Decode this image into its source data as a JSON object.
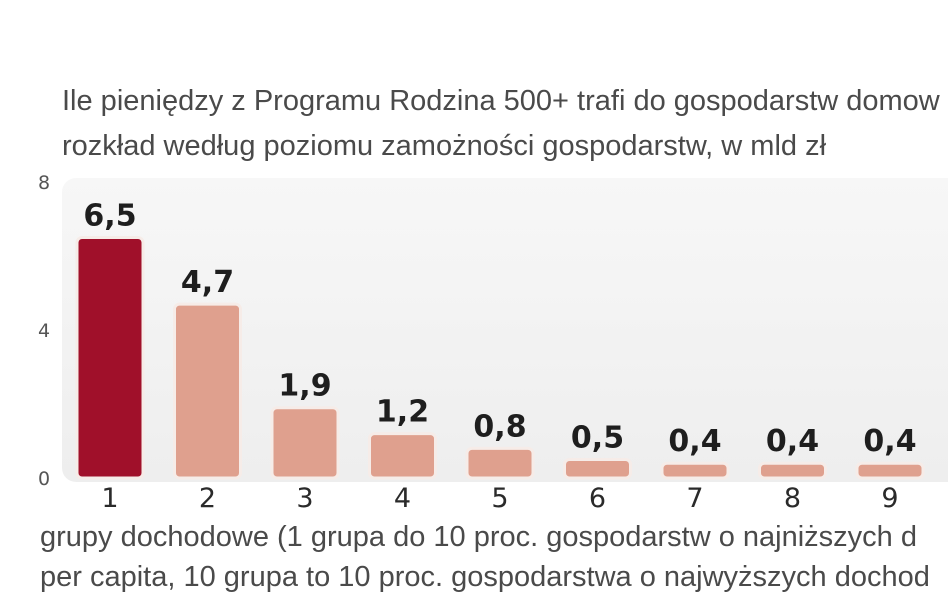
{
  "chart_data": {
    "type": "bar",
    "title": "Ile pieniędzy z Programu Rodzina 500+ trafi do gospodarstw domow",
    "subtitle": "rozkład według poziomu zamożności gospodarstw, w mld zł",
    "xlabel_line1": "grupy dochodowe (1 grupa do 10 proc. gospodarstw o najniższych d",
    "xlabel_line2": "per capita, 10 grupa to 10 proc. gospodarstwa o najwyższych dochod",
    "ylabel": "",
    "categories": [
      "1",
      "2",
      "3",
      "4",
      "5",
      "6",
      "7",
      "8",
      "9"
    ],
    "values": [
      6.5,
      4.7,
      1.9,
      1.2,
      0.8,
      0.5,
      0.4,
      0.4,
      0.4
    ],
    "value_labels": [
      "6,5",
      "4,7",
      "1,9",
      "1,2",
      "0,8",
      "0,5",
      "0,4",
      "0,4",
      "0,4"
    ],
    "ylim": [
      0,
      8
    ],
    "yticks": [
      0,
      4,
      8
    ],
    "ytick_labels": [
      "0",
      "4",
      "8"
    ],
    "grid": false,
    "legend": "none",
    "colors": {
      "highlight": "#a0102a",
      "bar": "#dfa08e",
      "bar_border": "#f6ece8",
      "panel": "#f1f1f1"
    },
    "highlight_index": 0
  }
}
